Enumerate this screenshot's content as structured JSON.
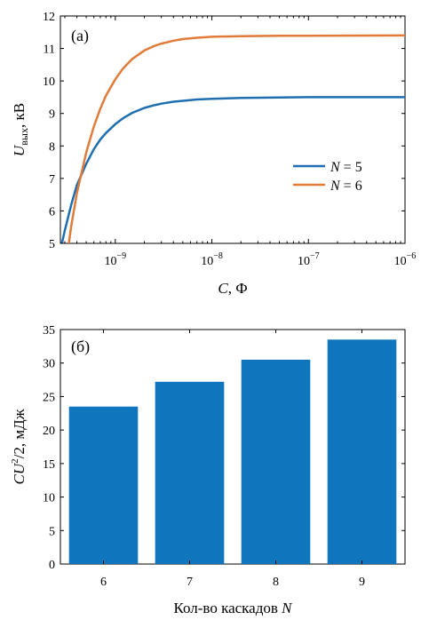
{
  "colors": {
    "n5": "#1f6fb0",
    "n6": "#e07b39",
    "bar": "#0f75bd",
    "axis": "#000000"
  },
  "chart_data": [
    {
      "type": "line",
      "panel_label": "(a)",
      "xscale": "log",
      "xlabel_main": "C",
      "xlabel_unit": ", Ф",
      "ylabel_main": "U",
      "ylabel_sub": "вых",
      "ylabel_unit": ", кВ",
      "xlim": [
        2.7e-10,
        1e-06
      ],
      "ylim": [
        5,
        12
      ],
      "yticks": [
        5,
        6,
        7,
        8,
        9,
        10,
        11,
        12
      ],
      "xticks": [
        {
          "value": 1e-09,
          "base": "10",
          "exp": "−9"
        },
        {
          "value": 1e-08,
          "base": "10",
          "exp": "−8"
        },
        {
          "value": 1e-07,
          "base": "10",
          "exp": "−7"
        },
        {
          "value": 1e-06,
          "base": "10",
          "exp": "−6"
        }
      ],
      "grid": false,
      "legend_position": "right",
      "series": [
        {
          "name_var": "N",
          "name_rest": " = 5",
          "color_key": "n5",
          "x": [
            2.8e-10,
            3e-10,
            3.5e-10,
            4e-10,
            5e-10,
            6e-10,
            7e-10,
            8e-10,
            1e-09,
            1.2e-09,
            1.5e-09,
            2e-09,
            2.5e-09,
            3e-09,
            4e-09,
            5e-09,
            7e-09,
            1e-08,
            2e-08,
            5e-08,
            1e-07,
            1e-06
          ],
          "y": [
            5.0,
            5.4,
            6.2,
            6.8,
            7.45,
            7.9,
            8.2,
            8.4,
            8.67,
            8.85,
            9.02,
            9.17,
            9.25,
            9.3,
            9.36,
            9.39,
            9.43,
            9.45,
            9.48,
            9.49,
            9.5,
            9.5
          ]
        },
        {
          "name_var": "N",
          "name_rest": " = 6",
          "color_key": "n6",
          "x": [
            3.3e-10,
            3.5e-10,
            4e-10,
            5e-10,
            6e-10,
            7e-10,
            8e-10,
            1e-09,
            1.2e-09,
            1.5e-09,
            2e-09,
            2.5e-09,
            3e-09,
            4e-09,
            5e-09,
            7e-09,
            1e-08,
            2e-08,
            5e-08,
            1e-07,
            1e-06
          ],
          "y": [
            5.0,
            5.55,
            6.55,
            7.8,
            8.6,
            9.15,
            9.55,
            10.05,
            10.38,
            10.68,
            10.94,
            11.07,
            11.15,
            11.24,
            11.29,
            11.33,
            11.36,
            11.38,
            11.39,
            11.39,
            11.4
          ]
        }
      ]
    },
    {
      "type": "bar",
      "panel_label": "(б)",
      "categories": [
        "6",
        "7",
        "8",
        "9"
      ],
      "values": [
        23.5,
        27.2,
        30.5,
        33.5
      ],
      "ylim": [
        0,
        35
      ],
      "yticks": [
        0,
        5,
        10,
        15,
        20,
        25,
        30,
        35
      ],
      "xlabel_main": "Кол-во каскадов ",
      "xlabel_var": "N",
      "ylabel_main": "CU",
      "ylabel_sup": "2",
      "ylabel_rest": "/2, мДж",
      "grid": false
    }
  ]
}
